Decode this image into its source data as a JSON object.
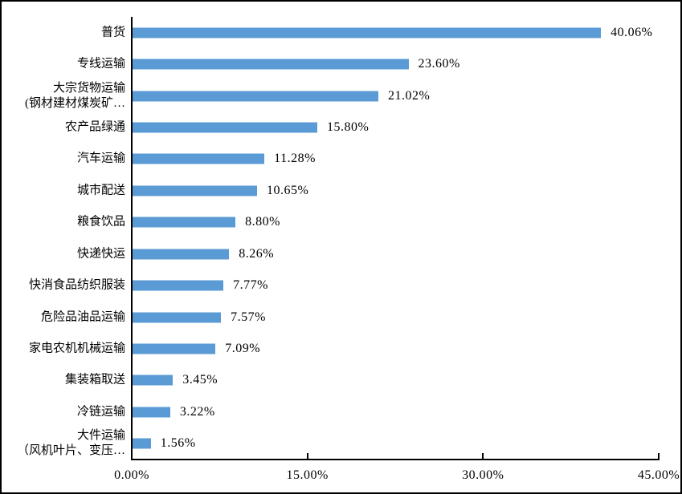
{
  "colors": {
    "bar": "#5B9BD5",
    "axis": "#000000",
    "background": "#FFFFFF",
    "border": "#000000",
    "text": "#000000"
  },
  "chart_data": {
    "type": "bar",
    "orientation": "horizontal",
    "title": "",
    "xlabel": "",
    "ylabel": "",
    "xlim": [
      0,
      45
    ],
    "grid": false,
    "legend": null,
    "categories": [
      "普货",
      "专线运输",
      "大宗货物运输\n(钢材建材煤炭矿…",
      "农产品绿通",
      "汽车运输",
      "城市配送",
      "粮食饮品",
      "快递快运",
      "快消食品纺织服装",
      "危险品油品运输",
      "家电农机机械运输",
      "集装箱取送",
      "冷链运输",
      "大件运输\n（风机叶片、变压…"
    ],
    "values": [
      40.06,
      23.6,
      21.02,
      15.8,
      11.28,
      10.65,
      8.8,
      8.26,
      7.77,
      7.57,
      7.09,
      3.45,
      3.22,
      1.56
    ],
    "value_labels": [
      "40.06%",
      "23.60%",
      "21.02%",
      "15.80%",
      "11.28%",
      "10.65%",
      "8.80%",
      "8.26%",
      "7.77%",
      "7.57%",
      "7.09%",
      "3.45%",
      "3.22%",
      "1.56%"
    ],
    "x_ticks": [
      "0.00%",
      "15.00%",
      "30.00%",
      "45.00%"
    ],
    "x_tick_values": [
      0,
      15,
      30,
      45
    ],
    "bar_color": "#5B9BD5"
  }
}
